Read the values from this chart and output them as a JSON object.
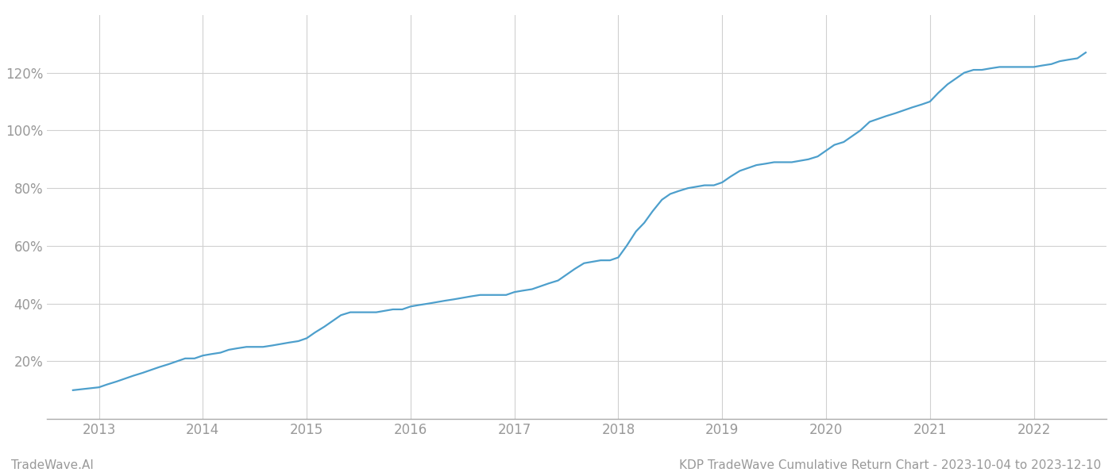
{
  "title": "KDP TradeWave Cumulative Return Chart - 2023-10-04 to 2023-12-10",
  "watermark": "TradeWave.AI",
  "x_years": [
    2013,
    2014,
    2015,
    2016,
    2017,
    2018,
    2019,
    2020,
    2021,
    2022
  ],
  "line_color": "#4d9fcc",
  "line_width": 1.6,
  "background_color": "#ffffff",
  "grid_color": "#d0d0d0",
  "y_ticks": [
    20,
    40,
    60,
    80,
    100,
    120
  ],
  "y_tick_labels": [
    "20%",
    "40%",
    "60%",
    "80%",
    "100%",
    "120%"
  ],
  "xlim": [
    2012.5,
    2022.7
  ],
  "ylim": [
    0,
    140
  ],
  "data_x": [
    2012.75,
    2013.0,
    2013.08,
    2013.17,
    2013.25,
    2013.33,
    2013.42,
    2013.5,
    2013.58,
    2013.67,
    2013.75,
    2013.83,
    2013.92,
    2014.0,
    2014.08,
    2014.17,
    2014.25,
    2014.33,
    2014.42,
    2014.5,
    2014.58,
    2014.67,
    2014.75,
    2014.83,
    2014.92,
    2015.0,
    2015.08,
    2015.17,
    2015.25,
    2015.33,
    2015.42,
    2015.5,
    2015.58,
    2015.67,
    2015.75,
    2015.83,
    2015.92,
    2016.0,
    2016.08,
    2016.17,
    2016.25,
    2016.33,
    2016.42,
    2016.5,
    2016.58,
    2016.67,
    2016.75,
    2016.83,
    2016.92,
    2017.0,
    2017.08,
    2017.17,
    2017.25,
    2017.33,
    2017.42,
    2017.5,
    2017.58,
    2017.67,
    2017.75,
    2017.83,
    2017.92,
    2018.0,
    2018.08,
    2018.17,
    2018.25,
    2018.33,
    2018.42,
    2018.5,
    2018.58,
    2018.67,
    2018.75,
    2018.83,
    2018.92,
    2019.0,
    2019.08,
    2019.17,
    2019.25,
    2019.33,
    2019.42,
    2019.5,
    2019.58,
    2019.67,
    2019.75,
    2019.83,
    2019.92,
    2020.0,
    2020.08,
    2020.17,
    2020.25,
    2020.33,
    2020.42,
    2020.5,
    2020.58,
    2020.67,
    2020.75,
    2020.83,
    2020.92,
    2021.0,
    2021.08,
    2021.17,
    2021.25,
    2021.33,
    2021.42,
    2021.5,
    2021.58,
    2021.67,
    2021.75,
    2021.83,
    2021.92,
    2022.0,
    2022.08,
    2022.17,
    2022.25,
    2022.33,
    2022.42,
    2022.5
  ],
  "data_y": [
    10,
    11,
    12,
    13,
    14,
    15,
    16,
    17,
    18,
    19,
    20,
    21,
    21,
    22,
    22.5,
    23,
    24,
    24.5,
    25,
    25,
    25,
    25.5,
    26,
    26.5,
    27,
    28,
    30,
    32,
    34,
    36,
    37,
    37,
    37,
    37,
    37.5,
    38,
    38,
    39,
    39.5,
    40,
    40.5,
    41,
    41.5,
    42,
    42.5,
    43,
    43,
    43,
    43,
    44,
    44.5,
    45,
    46,
    47,
    48,
    50,
    52,
    54,
    54.5,
    55,
    55,
    56,
    60,
    65,
    68,
    72,
    76,
    78,
    79,
    80,
    80.5,
    81,
    81,
    82,
    84,
    86,
    87,
    88,
    88.5,
    89,
    89,
    89,
    89.5,
    90,
    91,
    93,
    95,
    96,
    98,
    100,
    103,
    104,
    105,
    106,
    107,
    108,
    109,
    110,
    113,
    116,
    118,
    120,
    121,
    121,
    121.5,
    122,
    122,
    122,
    122,
    122,
    122.5,
    123,
    124,
    124.5,
    125,
    127
  ],
  "footer_fontsize": 11,
  "tick_fontsize": 12,
  "footer_color": "#999999",
  "tick_color": "#999999"
}
